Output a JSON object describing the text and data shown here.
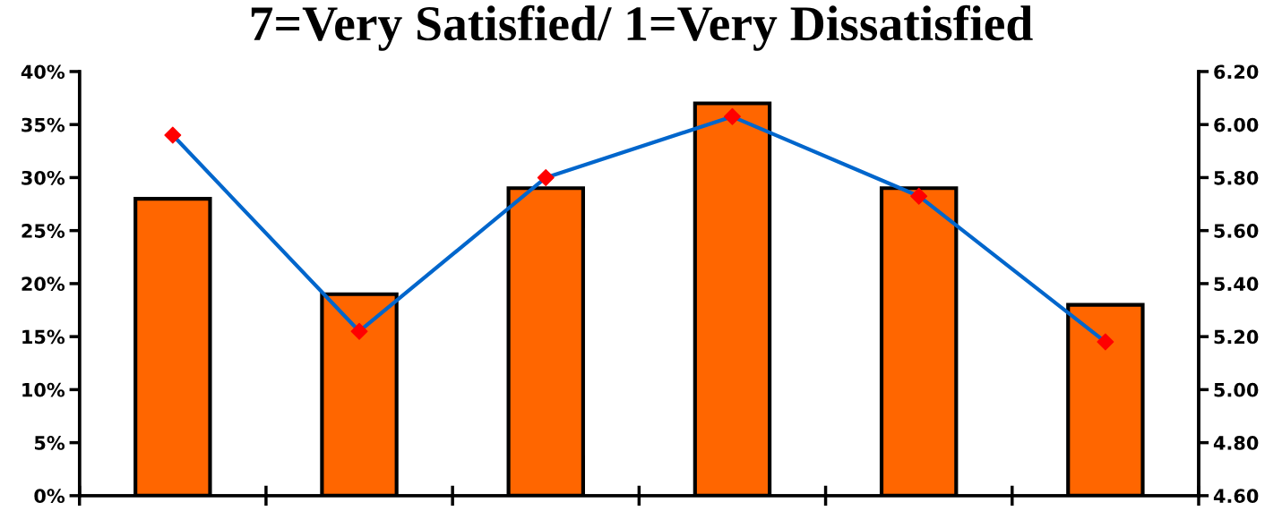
{
  "chart_data": {
    "type": "bar",
    "title": "7=Very Satisfied/ 1=Very Dissatisfied",
    "categories": [
      null,
      null,
      null,
      null,
      null,
      null
    ],
    "series": [
      {
        "color": "#ff6600",
        "values": [
          28,
          19,
          29,
          37,
          29,
          18
        ]
      },
      {
        "type": "line",
        "axis": "y2",
        "color": "#0066cc",
        "colors": [
          "#ff0000",
          "#ff0000",
          "#ff0000",
          "#ff0000",
          "#ff0000",
          "#ff0000"
        ],
        "values": [
          5.96,
          5.22,
          5.8,
          6.03,
          5.73,
          5.18
        ]
      }
    ],
    "ylim": [
      0,
      40
    ],
    "yticks": [
      {
        "value": 0,
        "label": "0%"
      },
      {
        "value": 5,
        "label": "5%"
      },
      {
        "value": 10,
        "label": "10%"
      },
      {
        "value": 15,
        "label": "15%"
      },
      {
        "value": 20,
        "label": "20%"
      },
      {
        "value": 25,
        "label": "25%"
      },
      {
        "value": 30,
        "label": "30%"
      },
      {
        "value": 35,
        "label": "35%"
      },
      {
        "value": 40,
        "label": "40%"
      }
    ],
    "y2lim": [
      4.6,
      6.2
    ],
    "y2ticks": [
      {
        "value": 4.6,
        "label": "4.60"
      },
      {
        "value": 4.8,
        "label": "4.80"
      },
      {
        "value": 5.0,
        "label": "5.00"
      },
      {
        "value": 5.2,
        "label": "5.20"
      },
      {
        "value": 5.4,
        "label": "5.40"
      },
      {
        "value": 5.6,
        "label": "5.60"
      },
      {
        "value": 5.8,
        "label": "5.80"
      },
      {
        "value": 6.0,
        "label": "6.00"
      },
      {
        "value": 6.2,
        "label": "6.20"
      }
    ],
    "marker": "diamond",
    "line_style": "solid",
    "grid": false,
    "legend": false,
    "tick_labels": "y"
  }
}
